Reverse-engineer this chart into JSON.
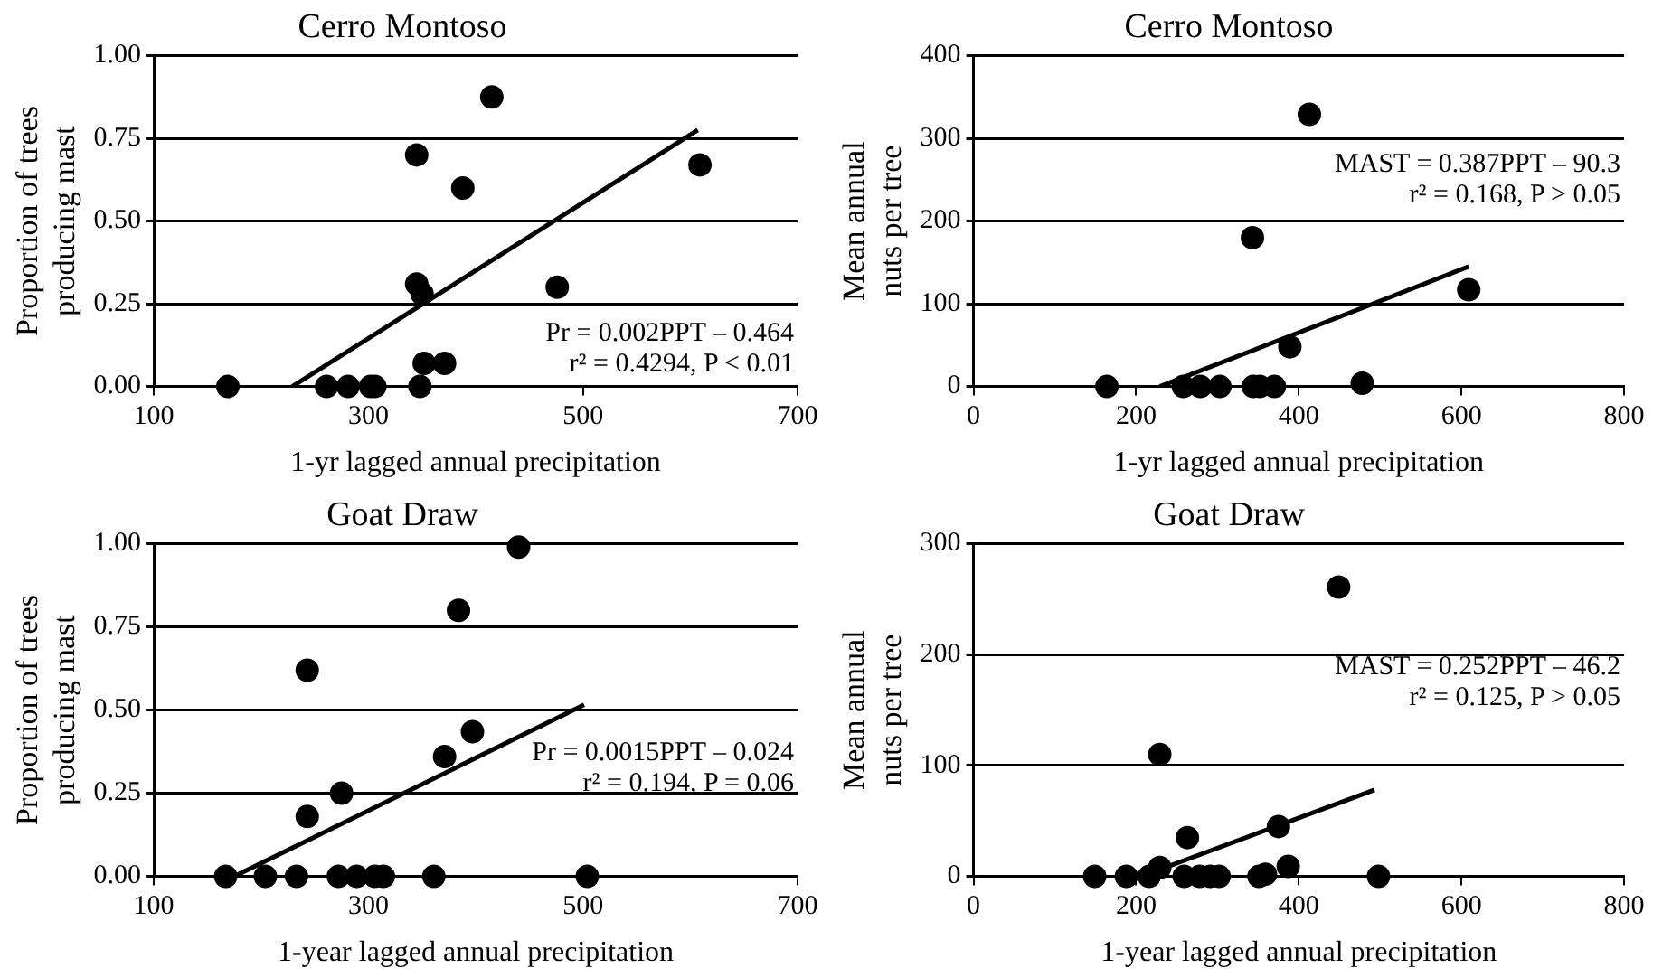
{
  "chart_data": [
    {
      "type": "scatter",
      "title": "Cerro Montoso",
      "xlabel": "1-yr lagged annual precipitation",
      "ylabel": "Proportion of trees producing mast",
      "xlim": [
        100,
        700
      ],
      "xticks": [
        100,
        300,
        500,
        700
      ],
      "ylim": [
        0,
        1
      ],
      "yticks": [
        {
          "value": 0,
          "label": "0.00"
        },
        {
          "value": 0.25,
          "label": "0.25"
        },
        {
          "value": 0.5,
          "label": "0.50"
        },
        {
          "value": 0.75,
          "label": "0.75"
        },
        {
          "value": 1,
          "label": "1.00"
        }
      ],
      "grid": "y",
      "legend": false,
      "annotations": [
        "Pr = 0.002PPT – 0.464",
        "r² = 0.4294, P < 0.01"
      ],
      "series": [
        {
          "type": "scatter",
          "marker": "circle",
          "color": "#000000",
          "x": [
            169,
            261,
            281,
            302,
            306,
            348,
            345,
            345,
            350,
            352,
            371,
            388,
            415,
            476,
            609
          ],
          "values": [
            0,
            0,
            0,
            0,
            0,
            0,
            0.7,
            0.31,
            0.28,
            0.07,
            0.07,
            0.6,
            0.875,
            0.3,
            0.67
          ]
        },
        {
          "type": "line",
          "color": "#000000",
          "x": [
            229,
            607
          ],
          "values": [
            0,
            0.775
          ]
        }
      ]
    },
    {
      "type": "scatter",
      "title": "Cerro Montoso",
      "xlabel": "1-yr lagged annual precipitation",
      "ylabel": "Mean annual nuts per tree",
      "xlim": [
        0,
        800
      ],
      "xticks": [
        0,
        200,
        400,
        600,
        800
      ],
      "ylim": [
        0,
        400
      ],
      "yticks": [
        0,
        100,
        200,
        300,
        400
      ],
      "grid": "y",
      "legend": false,
      "annotations": [
        "MAST = 0.387PPT – 90.3",
        "r² = 0.168, P > 0.05"
      ],
      "series": [
        {
          "type": "scatter",
          "marker": "circle",
          "color": "#000000",
          "x": [
            164,
            258,
            279,
            303,
            344,
            352,
            370,
            343,
            389,
            413,
            478,
            609
          ],
          "values": [
            0,
            0,
            0,
            0,
            0,
            0,
            0,
            180,
            48,
            329,
            4,
            117
          ]
        },
        {
          "type": "line",
          "color": "#000000",
          "x": [
            229,
            609
          ],
          "values": [
            0,
            145
          ]
        }
      ]
    },
    {
      "type": "scatter",
      "title": "Goat Draw",
      "xlabel": "1-year lagged annual precipitation",
      "ylabel": "Proportion of trees producing mast",
      "xlim": [
        100,
        700
      ],
      "xticks": [
        100,
        300,
        500,
        700
      ],
      "ylim": [
        0,
        1
      ],
      "yticks": [
        {
          "value": 0,
          "label": "0.00"
        },
        {
          "value": 0.25,
          "label": "0.25"
        },
        {
          "value": 0.5,
          "label": "0.50"
        },
        {
          "value": 0.75,
          "label": "0.75"
        },
        {
          "value": 1,
          "label": "1.00"
        }
      ],
      "grid": "y",
      "legend": false,
      "annotations": [
        "Pr = 0.0015PPT – 0.024",
        "r² = 0.194, P = 0.06"
      ],
      "series": [
        {
          "type": "scatter",
          "marker": "circle",
          "color": "#000000",
          "x": [
            167,
            204,
            233,
            272,
            289,
            306,
            314,
            361,
            504,
            243,
            243,
            275,
            371,
            397,
            384,
            440
          ],
          "values": [
            0,
            0,
            0,
            0,
            0,
            0,
            0,
            0,
            0,
            0.62,
            0.18,
            0.25,
            0.36,
            0.435,
            0.8,
            0.99
          ]
        },
        {
          "type": "line",
          "color": "#000000",
          "x": [
            175,
            501
          ],
          "values": [
            0,
            0.516
          ]
        }
      ]
    },
    {
      "type": "scatter",
      "title": "Goat Draw",
      "xlabel": "1-year lagged annual precipitation",
      "ylabel": "Mean annual nuts per tree",
      "xlim": [
        0,
        800
      ],
      "xticks": [
        0,
        200,
        400,
        600,
        800
      ],
      "ylim": [
        0,
        300
      ],
      "yticks": [
        0,
        100,
        200,
        300
      ],
      "grid": "y",
      "legend": false,
      "annotations": [
        "MAST = 0.252PPT – 46.2",
        "r² = 0.125, P > 0.05"
      ],
      "series": [
        {
          "type": "scatter",
          "marker": "circle",
          "color": "#000000",
          "x": [
            149,
            188,
            216,
            229,
            229,
            263,
            259,
            278,
            291,
            302,
            351,
            359,
            375,
            387,
            449,
            498
          ],
          "values": [
            0,
            0,
            0,
            8,
            110,
            35,
            0,
            0,
            0,
            0,
            0,
            2,
            45,
            9,
            261,
            0
          ]
        },
        {
          "type": "line",
          "color": "#000000",
          "x": [
            206,
            493
          ],
          "values": [
            0,
            78
          ]
        }
      ]
    }
  ]
}
